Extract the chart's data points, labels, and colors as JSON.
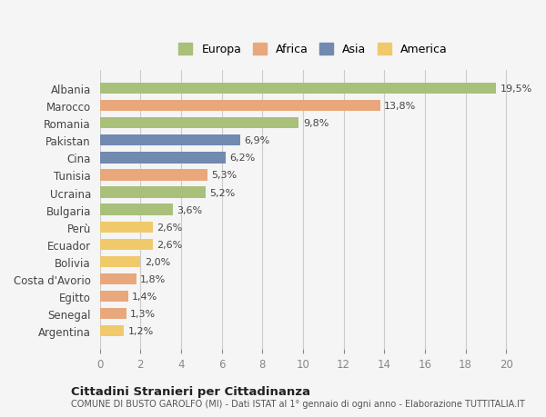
{
  "categories": [
    "Albania",
    "Marocco",
    "Romania",
    "Pakistan",
    "Cina",
    "Tunisia",
    "Ucraina",
    "Bulgaria",
    "Perù",
    "Ecuador",
    "Bolivia",
    "Costa d'Avorio",
    "Egitto",
    "Senegal",
    "Argentina"
  ],
  "values": [
    19.5,
    13.8,
    9.8,
    6.9,
    6.2,
    5.3,
    5.2,
    3.6,
    2.6,
    2.6,
    2.0,
    1.8,
    1.4,
    1.3,
    1.2
  ],
  "labels": [
    "19,5%",
    "13,8%",
    "9,8%",
    "6,9%",
    "6,2%",
    "5,3%",
    "5,2%",
    "3,6%",
    "2,6%",
    "2,6%",
    "2,0%",
    "1,8%",
    "1,4%",
    "1,3%",
    "1,2%"
  ],
  "continent": [
    "Europa",
    "Africa",
    "Europa",
    "Asia",
    "Asia",
    "Africa",
    "Europa",
    "Europa",
    "America",
    "America",
    "America",
    "Africa",
    "Africa",
    "Africa",
    "America"
  ],
  "colors": {
    "Europa": "#a8c07a",
    "Africa": "#e8a87c",
    "Asia": "#7289b0",
    "America": "#f0c96a"
  },
  "legend_order": [
    "Europa",
    "Africa",
    "Asia",
    "America"
  ],
  "background_color": "#f5f5f5",
  "xlim": [
    0,
    21
  ],
  "xticks": [
    0,
    2,
    4,
    6,
    8,
    10,
    12,
    14,
    16,
    18,
    20
  ],
  "title": "Cittadini Stranieri per Cittadinanza",
  "subtitle": "COMUNE DI BUSTO GAROLFO (MI) - Dati ISTAT al 1° gennaio di ogni anno - Elaborazione TUTTITALIA.IT"
}
